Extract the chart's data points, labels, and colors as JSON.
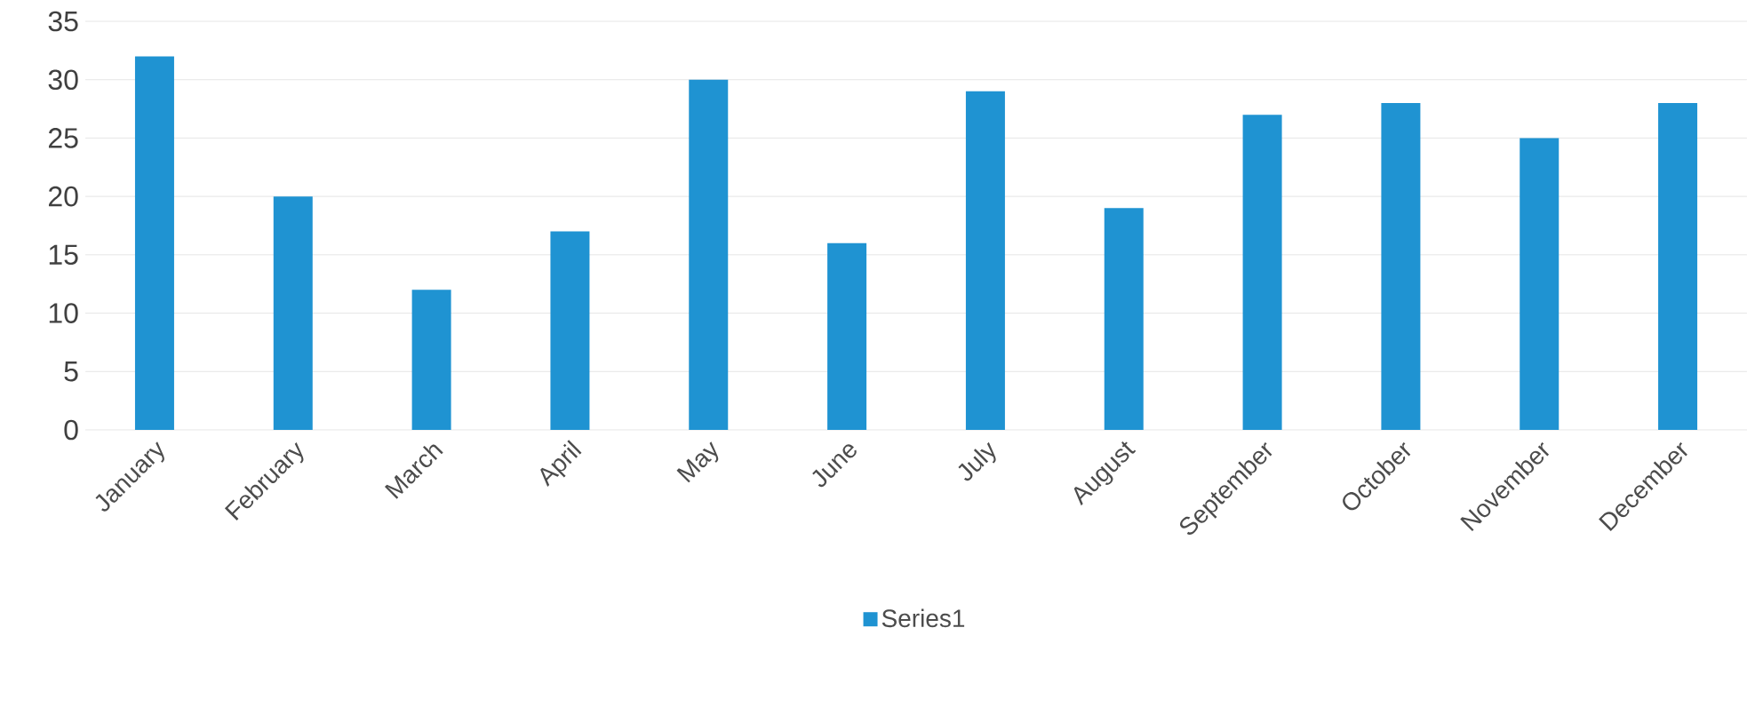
{
  "chart_data": {
    "type": "bar",
    "categories": [
      "January",
      "February",
      "March",
      "April",
      "May",
      "June",
      "July",
      "August",
      "September",
      "October",
      "November",
      "December"
    ],
    "series": [
      {
        "name": "Series1",
        "color": "#1f93d2",
        "values": [
          32,
          20,
          12,
          17,
          30,
          16,
          29,
          19,
          27,
          28,
          25,
          28
        ]
      }
    ],
    "ylim": [
      0,
      35
    ],
    "yticks": [
      0,
      5,
      10,
      15,
      20,
      25,
      30,
      35
    ],
    "grid": "y",
    "legend": "bottom"
  }
}
